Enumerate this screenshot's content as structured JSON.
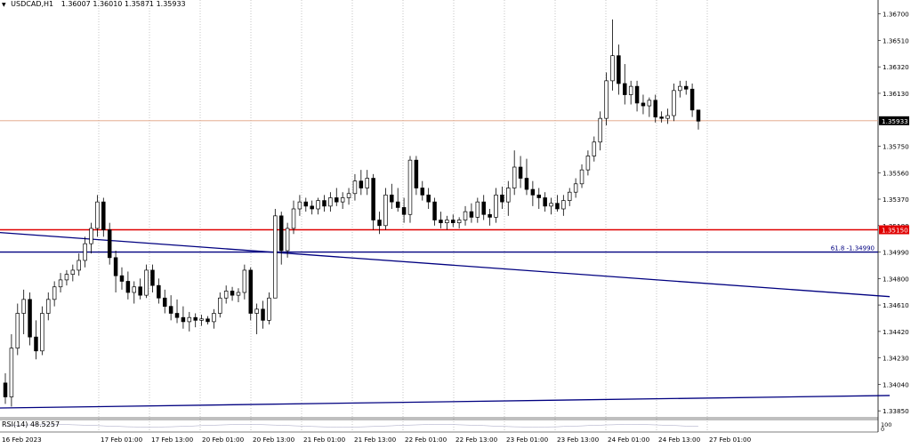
{
  "header": {
    "arrow_icon": "triangle-down-icon",
    "symbol": "USDCAD,H1",
    "ohlc": "1.36007 1.36010 1.35871 1.35933"
  },
  "rsi": {
    "label": "RSI(14) 48.5257",
    "scale_top": "100",
    "scale_bottom": "0"
  },
  "colors": {
    "background": "#ffffff",
    "candle": "#000000",
    "grid": "#a0a0a0",
    "red_line": "#e00000",
    "navy_line": "#000080",
    "price_tag": "#000000",
    "red_tag": "#e00000"
  },
  "chart_data": {
    "type": "candlestick",
    "symbol": "USDCAD",
    "timeframe": "H1",
    "y_ticks": [
      "1.36700",
      "1.36510",
      "1.36320",
      "1.36130",
      "1.35750",
      "1.35560",
      "1.35370",
      "1.35180",
      "1.34990",
      "1.34800",
      "1.34610",
      "1.34420",
      "1.34230",
      "1.34040",
      "1.33850"
    ],
    "ylim": [
      1.338,
      1.368
    ],
    "x_ticks": [
      "16 Feb 2023",
      "17 Feb 01:00",
      "17 Feb 13:00",
      "20 Feb 01:00",
      "20 Feb 13:00",
      "21 Feb 01:00",
      "21 Feb 13:00",
      "22 Feb 01:00",
      "22 Feb 13:00",
      "23 Feb 01:00",
      "23 Feb 13:00",
      "24 Feb 01:00",
      "24 Feb 13:00",
      "27 Feb 01:00"
    ],
    "current_price": "1.35933",
    "resistance_price": "1.35150",
    "fib_label": "61.8 -1.34990",
    "fib_price": 1.3499,
    "trendlines": [
      {
        "from": [
          0,
          1.3513
        ],
        "to": [
          1000,
          1.3467
        ]
      },
      {
        "from": [
          0,
          1.3387
        ],
        "to": [
          1000,
          1.3396
        ]
      }
    ],
    "candles": [
      {
        "o": 1.3405,
        "h": 1.3412,
        "l": 1.339,
        "c": 1.3395
      },
      {
        "o": 1.3395,
        "h": 1.344,
        "l": 1.3388,
        "c": 1.343
      },
      {
        "o": 1.343,
        "h": 1.3462,
        "l": 1.3425,
        "c": 1.3455
      },
      {
        "o": 1.3455,
        "h": 1.3472,
        "l": 1.344,
        "c": 1.3465
      },
      {
        "o": 1.3465,
        "h": 1.347,
        "l": 1.3432,
        "c": 1.3438
      },
      {
        "o": 1.3438,
        "h": 1.345,
        "l": 1.3422,
        "c": 1.3428
      },
      {
        "o": 1.3428,
        "h": 1.346,
        "l": 1.3425,
        "c": 1.3455
      },
      {
        "o": 1.3455,
        "h": 1.347,
        "l": 1.345,
        "c": 1.3465
      },
      {
        "o": 1.3465,
        "h": 1.3478,
        "l": 1.346,
        "c": 1.3474
      },
      {
        "o": 1.3474,
        "h": 1.3484,
        "l": 1.347,
        "c": 1.3479
      },
      {
        "o": 1.3479,
        "h": 1.3486,
        "l": 1.3475,
        "c": 1.3483
      },
      {
        "o": 1.3483,
        "h": 1.349,
        "l": 1.3478,
        "c": 1.3486
      },
      {
        "o": 1.3486,
        "h": 1.3498,
        "l": 1.3482,
        "c": 1.3493
      },
      {
        "o": 1.3493,
        "h": 1.351,
        "l": 1.3488,
        "c": 1.3505
      },
      {
        "o": 1.3505,
        "h": 1.352,
        "l": 1.3498,
        "c": 1.3516
      },
      {
        "o": 1.3516,
        "h": 1.354,
        "l": 1.351,
        "c": 1.3535
      },
      {
        "o": 1.3535,
        "h": 1.3538,
        "l": 1.351,
        "c": 1.3515
      },
      {
        "o": 1.3515,
        "h": 1.352,
        "l": 1.349,
        "c": 1.3495
      },
      {
        "o": 1.3495,
        "h": 1.35,
        "l": 1.347,
        "c": 1.3482
      },
      {
        "o": 1.3482,
        "h": 1.3488,
        "l": 1.3472,
        "c": 1.3478
      },
      {
        "o": 1.3478,
        "h": 1.3485,
        "l": 1.3465,
        "c": 1.347
      },
      {
        "o": 1.347,
        "h": 1.3478,
        "l": 1.3462,
        "c": 1.3474
      },
      {
        "o": 1.3474,
        "h": 1.348,
        "l": 1.3465,
        "c": 1.3468
      },
      {
        "o": 1.3468,
        "h": 1.349,
        "l": 1.3466,
        "c": 1.3486
      },
      {
        "o": 1.3486,
        "h": 1.349,
        "l": 1.347,
        "c": 1.3475
      },
      {
        "o": 1.3475,
        "h": 1.348,
        "l": 1.3462,
        "c": 1.3466
      },
      {
        "o": 1.3466,
        "h": 1.3472,
        "l": 1.3455,
        "c": 1.346
      },
      {
        "o": 1.346,
        "h": 1.3468,
        "l": 1.345,
        "c": 1.3455
      },
      {
        "o": 1.3455,
        "h": 1.3465,
        "l": 1.3448,
        "c": 1.3452
      },
      {
        "o": 1.3452,
        "h": 1.346,
        "l": 1.3444,
        "c": 1.3449
      },
      {
        "o": 1.3449,
        "h": 1.3456,
        "l": 1.3442,
        "c": 1.3452
      },
      {
        "o": 1.3452,
        "h": 1.3455,
        "l": 1.3445,
        "c": 1.345
      },
      {
        "o": 1.345,
        "h": 1.3454,
        "l": 1.3446,
        "c": 1.3451
      },
      {
        "o": 1.3451,
        "h": 1.3453,
        "l": 1.3447,
        "c": 1.3449
      },
      {
        "o": 1.3449,
        "h": 1.3458,
        "l": 1.3444,
        "c": 1.3455
      },
      {
        "o": 1.3455,
        "h": 1.347,
        "l": 1.3452,
        "c": 1.3466
      },
      {
        "o": 1.3466,
        "h": 1.3475,
        "l": 1.3462,
        "c": 1.3471
      },
      {
        "o": 1.3471,
        "h": 1.3474,
        "l": 1.3464,
        "c": 1.3468
      },
      {
        "o": 1.3468,
        "h": 1.3473,
        "l": 1.3463,
        "c": 1.347
      },
      {
        "o": 1.347,
        "h": 1.349,
        "l": 1.3465,
        "c": 1.3486
      },
      {
        "o": 1.3486,
        "h": 1.3488,
        "l": 1.345,
        "c": 1.3455
      },
      {
        "o": 1.3455,
        "h": 1.3462,
        "l": 1.344,
        "c": 1.3458
      },
      {
        "o": 1.3458,
        "h": 1.3464,
        "l": 1.3444,
        "c": 1.345
      },
      {
        "o": 1.345,
        "h": 1.347,
        "l": 1.3447,
        "c": 1.3466
      },
      {
        "o": 1.3466,
        "h": 1.353,
        "l": 1.3466,
        "c": 1.3525
      },
      {
        "o": 1.3525,
        "h": 1.3528,
        "l": 1.349,
        "c": 1.35
      },
      {
        "o": 1.35,
        "h": 1.352,
        "l": 1.3495,
        "c": 1.3516
      },
      {
        "o": 1.3516,
        "h": 1.3536,
        "l": 1.3512,
        "c": 1.353
      },
      {
        "o": 1.353,
        "h": 1.354,
        "l": 1.3525,
        "c": 1.3535
      },
      {
        "o": 1.3535,
        "h": 1.3538,
        "l": 1.3528,
        "c": 1.3532
      },
      {
        "o": 1.3532,
        "h": 1.3536,
        "l": 1.3526,
        "c": 1.353
      },
      {
        "o": 1.353,
        "h": 1.3538,
        "l": 1.3526,
        "c": 1.3536
      },
      {
        "o": 1.3536,
        "h": 1.354,
        "l": 1.3528,
        "c": 1.3532
      },
      {
        "o": 1.3532,
        "h": 1.3542,
        "l": 1.3528,
        "c": 1.3538
      },
      {
        "o": 1.3538,
        "h": 1.3545,
        "l": 1.3532,
        "c": 1.3535
      },
      {
        "o": 1.3535,
        "h": 1.3542,
        "l": 1.353,
        "c": 1.3538
      },
      {
        "o": 1.3538,
        "h": 1.3545,
        "l": 1.3533,
        "c": 1.3541
      },
      {
        "o": 1.3541,
        "h": 1.3555,
        "l": 1.3536,
        "c": 1.355
      },
      {
        "o": 1.355,
        "h": 1.3558,
        "l": 1.354,
        "c": 1.3545
      },
      {
        "o": 1.3545,
        "h": 1.3558,
        "l": 1.354,
        "c": 1.3552
      },
      {
        "o": 1.3552,
        "h": 1.3555,
        "l": 1.3515,
        "c": 1.3522
      },
      {
        "o": 1.3522,
        "h": 1.3528,
        "l": 1.3512,
        "c": 1.3518
      },
      {
        "o": 1.3518,
        "h": 1.3545,
        "l": 1.3515,
        "c": 1.354
      },
      {
        "o": 1.354,
        "h": 1.3548,
        "l": 1.353,
        "c": 1.3535
      },
      {
        "o": 1.3535,
        "h": 1.3545,
        "l": 1.3528,
        "c": 1.3531
      },
      {
        "o": 1.3531,
        "h": 1.3538,
        "l": 1.352,
        "c": 1.3526
      },
      {
        "o": 1.3526,
        "h": 1.3568,
        "l": 1.352,
        "c": 1.3565
      },
      {
        "o": 1.3565,
        "h": 1.3568,
        "l": 1.354,
        "c": 1.3545
      },
      {
        "o": 1.3545,
        "h": 1.355,
        "l": 1.3536,
        "c": 1.354
      },
      {
        "o": 1.354,
        "h": 1.3545,
        "l": 1.353,
        "c": 1.3535
      },
      {
        "o": 1.3535,
        "h": 1.3538,
        "l": 1.3518,
        "c": 1.3522
      },
      {
        "o": 1.3522,
        "h": 1.3528,
        "l": 1.3516,
        "c": 1.352
      },
      {
        "o": 1.352,
        "h": 1.3525,
        "l": 1.3515,
        "c": 1.3522
      },
      {
        "o": 1.3522,
        "h": 1.3526,
        "l": 1.3517,
        "c": 1.352
      },
      {
        "o": 1.352,
        "h": 1.3524,
        "l": 1.3516,
        "c": 1.3522
      },
      {
        "o": 1.3522,
        "h": 1.3532,
        "l": 1.3518,
        "c": 1.3528
      },
      {
        "o": 1.3528,
        "h": 1.3534,
        "l": 1.352,
        "c": 1.3524
      },
      {
        "o": 1.3524,
        "h": 1.3538,
        "l": 1.352,
        "c": 1.3535
      },
      {
        "o": 1.3535,
        "h": 1.354,
        "l": 1.3522,
        "c": 1.3526
      },
      {
        "o": 1.3526,
        "h": 1.353,
        "l": 1.3518,
        "c": 1.3524
      },
      {
        "o": 1.3524,
        "h": 1.3545,
        "l": 1.352,
        "c": 1.354
      },
      {
        "o": 1.354,
        "h": 1.3546,
        "l": 1.353,
        "c": 1.3535
      },
      {
        "o": 1.3535,
        "h": 1.355,
        "l": 1.3525,
        "c": 1.3545
      },
      {
        "o": 1.3545,
        "h": 1.3572,
        "l": 1.354,
        "c": 1.356
      },
      {
        "o": 1.356,
        "h": 1.3568,
        "l": 1.3545,
        "c": 1.3552
      },
      {
        "o": 1.3552,
        "h": 1.3566,
        "l": 1.354,
        "c": 1.3544
      },
      {
        "o": 1.3544,
        "h": 1.355,
        "l": 1.3532,
        "c": 1.354
      },
      {
        "o": 1.354,
        "h": 1.3545,
        "l": 1.353,
        "c": 1.3538
      },
      {
        "o": 1.3538,
        "h": 1.3542,
        "l": 1.3528,
        "c": 1.3532
      },
      {
        "o": 1.3532,
        "h": 1.3538,
        "l": 1.3526,
        "c": 1.3534
      },
      {
        "o": 1.3534,
        "h": 1.354,
        "l": 1.3528,
        "c": 1.353
      },
      {
        "o": 1.353,
        "h": 1.354,
        "l": 1.3525,
        "c": 1.3536
      },
      {
        "o": 1.3536,
        "h": 1.3545,
        "l": 1.3532,
        "c": 1.3542
      },
      {
        "o": 1.3542,
        "h": 1.3552,
        "l": 1.3538,
        "c": 1.3548
      },
      {
        "o": 1.3548,
        "h": 1.3562,
        "l": 1.3545,
        "c": 1.3558
      },
      {
        "o": 1.3558,
        "h": 1.3572,
        "l": 1.3554,
        "c": 1.3568
      },
      {
        "o": 1.3568,
        "h": 1.3582,
        "l": 1.3564,
        "c": 1.3578
      },
      {
        "o": 1.3578,
        "h": 1.36,
        "l": 1.3572,
        "c": 1.3595
      },
      {
        "o": 1.3595,
        "h": 1.3628,
        "l": 1.359,
        "c": 1.3622
      },
      {
        "o": 1.3622,
        "h": 1.3666,
        "l": 1.3615,
        "c": 1.364
      },
      {
        "o": 1.364,
        "h": 1.3648,
        "l": 1.3612,
        "c": 1.362
      },
      {
        "o": 1.362,
        "h": 1.3634,
        "l": 1.3605,
        "c": 1.3612
      },
      {
        "o": 1.3612,
        "h": 1.3622,
        "l": 1.3605,
        "c": 1.3618
      },
      {
        "o": 1.3618,
        "h": 1.3622,
        "l": 1.36,
        "c": 1.3606
      },
      {
        "o": 1.3606,
        "h": 1.3612,
        "l": 1.3598,
        "c": 1.3604
      },
      {
        "o": 1.3604,
        "h": 1.361,
        "l": 1.3596,
        "c": 1.3608
      },
      {
        "o": 1.3608,
        "h": 1.3612,
        "l": 1.3592,
        "c": 1.3596
      },
      {
        "o": 1.3596,
        "h": 1.36,
        "l": 1.3592,
        "c": 1.3595
      },
      {
        "o": 1.3595,
        "h": 1.3602,
        "l": 1.3591,
        "c": 1.3597
      },
      {
        "o": 1.3597,
        "h": 1.362,
        "l": 1.3593,
        "c": 1.3615
      },
      {
        "o": 1.3615,
        "h": 1.3622,
        "l": 1.361,
        "c": 1.3618
      },
      {
        "o": 1.3618,
        "h": 1.3622,
        "l": 1.3612,
        "c": 1.3616
      },
      {
        "o": 1.3616,
        "h": 1.362,
        "l": 1.3596,
        "c": 1.3601
      },
      {
        "o": 1.3601,
        "h": 1.3601,
        "l": 1.3587,
        "c": 1.3593
      }
    ],
    "rsi_period": 14,
    "rsi_value": 48.5257,
    "grid": true,
    "legend": "none"
  }
}
